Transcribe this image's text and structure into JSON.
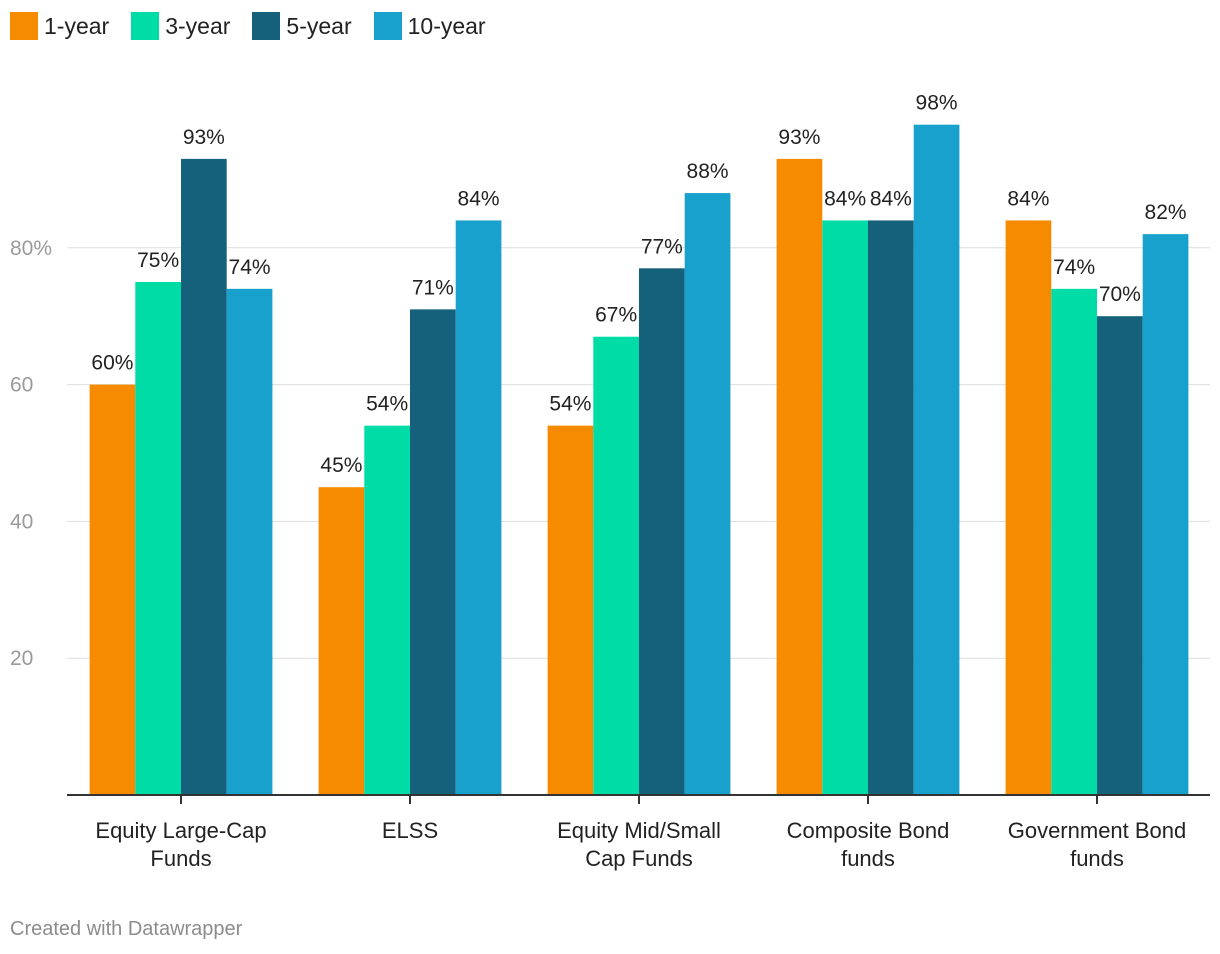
{
  "chart_data": {
    "type": "bar",
    "categories": [
      [
        "Equity Large-Cap",
        "Funds"
      ],
      [
        "ELSS"
      ],
      [
        "Equity Mid/Small",
        "Cap Funds"
      ],
      [
        "Composite Bond",
        "funds"
      ],
      [
        "Government Bond",
        "funds"
      ]
    ],
    "series": [
      {
        "name": "1-year",
        "color": "#f78b00",
        "values": [
          60,
          45,
          54,
          93,
          84
        ]
      },
      {
        "name": "3-year",
        "color": "#00dca6",
        "values": [
          75,
          54,
          67,
          84,
          74
        ]
      },
      {
        "name": "5-year",
        "color": "#15607a",
        "values": [
          93,
          71,
          77,
          84,
          70
        ]
      },
      {
        "name": "10-year",
        "color": "#18a1cd",
        "values": [
          74,
          84,
          88,
          98,
          82
        ]
      }
    ],
    "value_suffix": "%",
    "ylim": [
      0,
      100
    ],
    "yticks": [
      {
        "value": 20,
        "label": "20"
      },
      {
        "value": 40,
        "label": "40"
      },
      {
        "value": 60,
        "label": "60"
      },
      {
        "value": 80,
        "label": "80%"
      }
    ],
    "legend_position": "top-left",
    "grid": true
  },
  "footer": {
    "credit": "Created with Datawrapper"
  }
}
